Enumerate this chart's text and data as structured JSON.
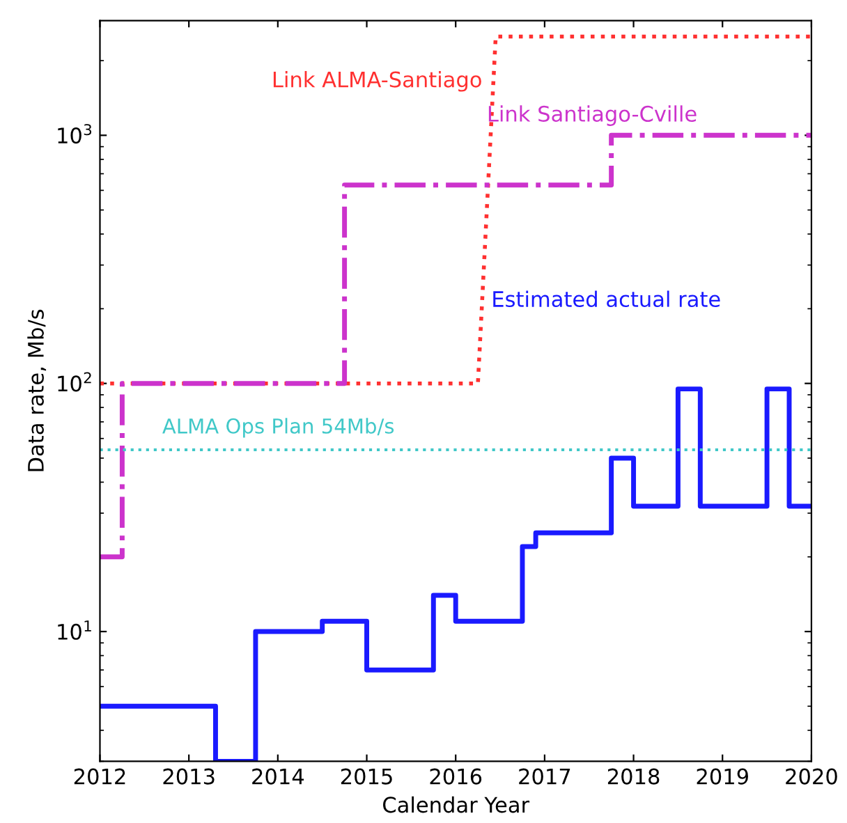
{
  "chart_data": {
    "type": "line",
    "xlabel": "Calendar Year",
    "ylabel": "Data rate, Mb/s",
    "log": "y",
    "grid": false,
    "legend": false,
    "xlim": [
      2012,
      2020
    ],
    "xticks": [
      2012,
      2013,
      2014,
      2015,
      2016,
      2017,
      2018,
      2019,
      2020
    ],
    "ylim": [
      3,
      2900
    ],
    "yticks": [
      {
        "value": 10,
        "label": "10$^{1}$"
      },
      {
        "value": 100,
        "label": "10$^{2}$"
      },
      {
        "value": 1000,
        "label": "10$^{3}$"
      }
    ],
    "series": [
      {
        "name": "Link ALMA-Santiago",
        "color": "#ff3030",
        "line_style": "dotted",
        "x": [
          2012,
          2016.25,
          2016.45,
          2020
        ],
        "values": [
          100,
          100,
          2500,
          2500
        ]
      },
      {
        "name": "Link Santiago-Cville",
        "type": "step",
        "color": "#cc33cc",
        "line_style": "dashdot",
        "x": [
          2012,
          2012.25,
          2014.75,
          2017.75,
          2020
        ],
        "values": [
          20,
          100,
          630,
          1000,
          1000
        ]
      },
      {
        "name": "Estimated actual rate",
        "type": "step",
        "color": "#1a1aff",
        "line_style": "solid",
        "x": [
          2012,
          2013.3,
          2013.75,
          2014.5,
          2015,
          2015.75,
          2016,
          2016.75,
          2016.9,
          2017.75,
          2018,
          2018.5,
          2018.75,
          2019.5,
          2019.75,
          2020
        ],
        "values": [
          5,
          3,
          10,
          11,
          7,
          14,
          11,
          22,
          25,
          50,
          32,
          95,
          32,
          95,
          32,
          32
        ]
      }
    ],
    "ref_lines": [
      {
        "axis": "y",
        "value": 54,
        "label": "ALMA Ops Plan 54Mb/s",
        "color": "#40c8c8",
        "line_style": "dotted"
      }
    ]
  }
}
